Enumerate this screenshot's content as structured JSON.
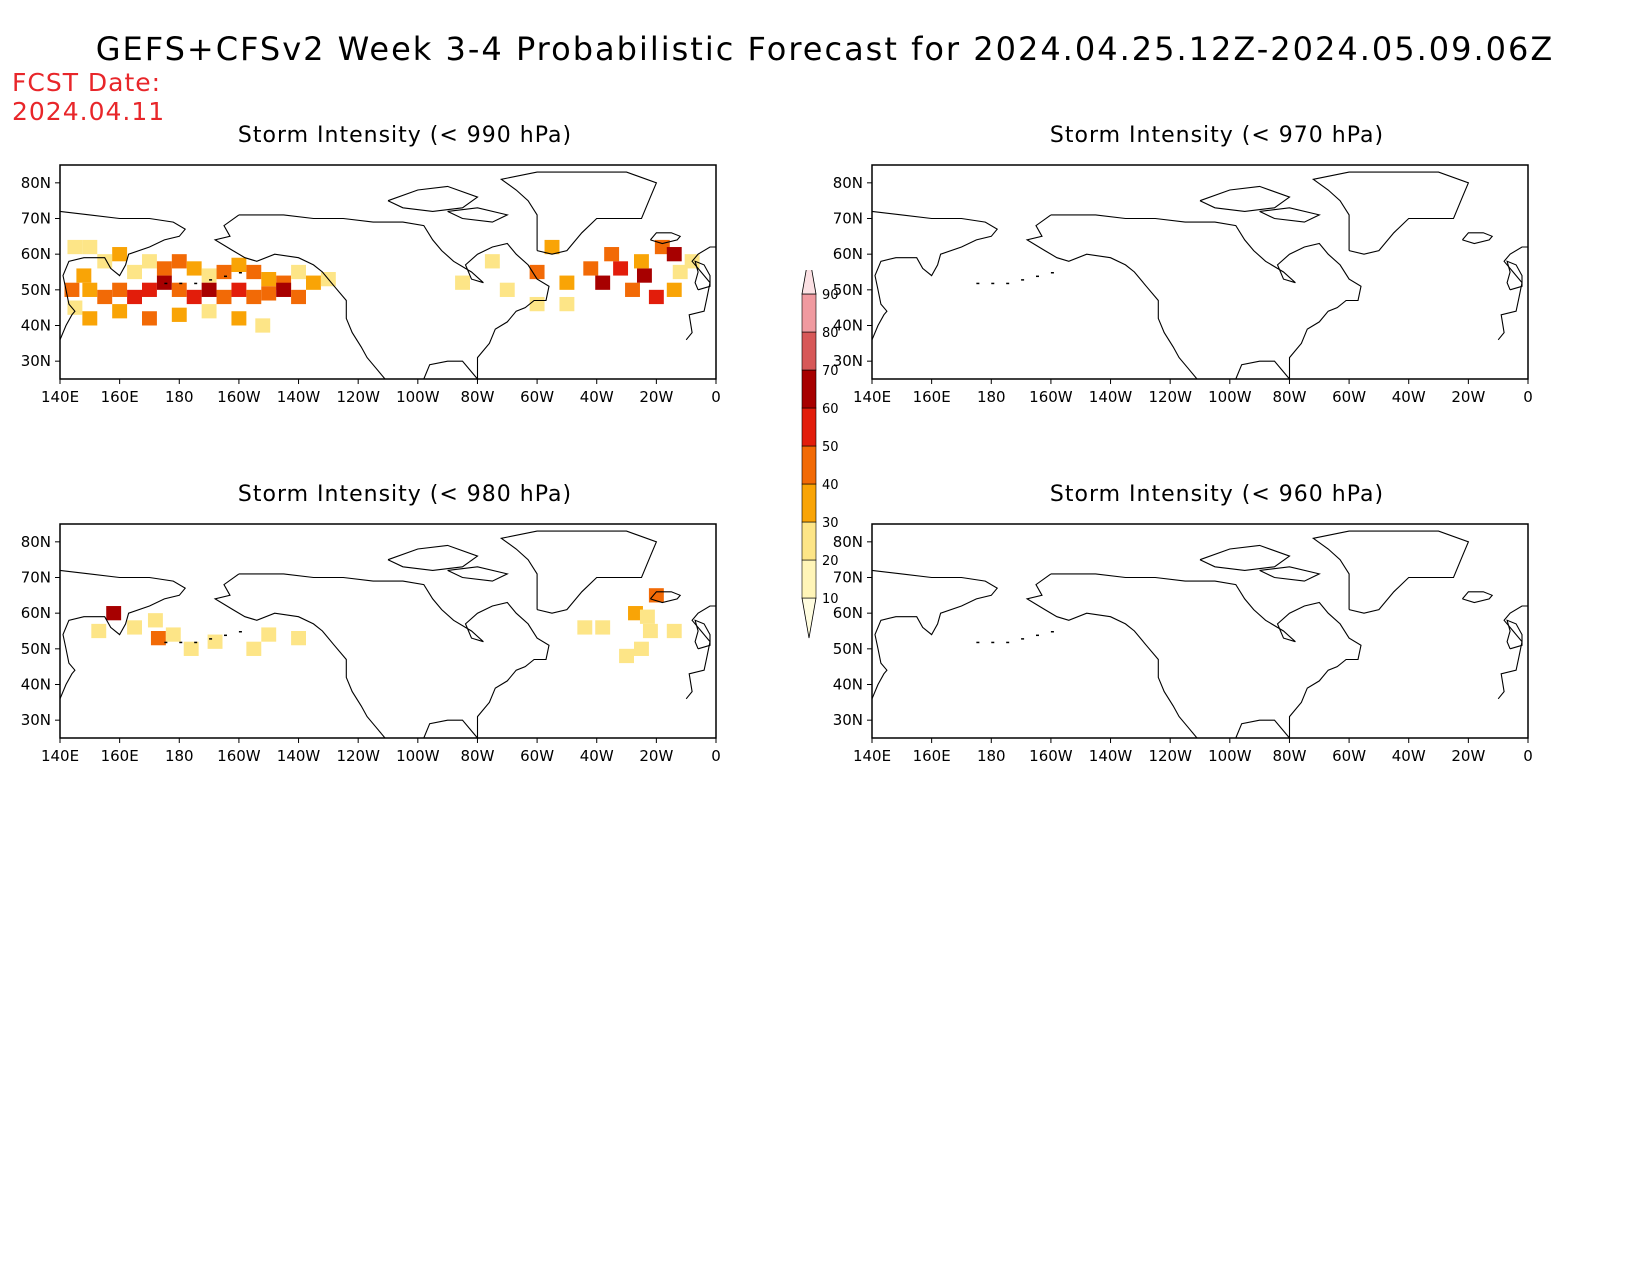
{
  "title": "GEFS+CFSv2 Week 3-4 Probabilistic Forecast for 2024.04.25.12Z-2024.05.09.06Z",
  "fcst_date": {
    "label": "FCST Date:",
    "value": "2024.04.11"
  },
  "colors": {
    "fcst_text": "#e8262a",
    "coastline": "#000000"
  },
  "axes": {
    "x_ticks": [
      "140E",
      "160E",
      "180",
      "160W",
      "140W",
      "120W",
      "100W",
      "80W",
      "60W",
      "40W",
      "20W",
      "0"
    ],
    "y_ticks": [
      "80N",
      "70N",
      "60N",
      "50N",
      "40N",
      "30N"
    ]
  },
  "panels": [
    {
      "id": "p990",
      "title": "Storm Intensity (< 990 hPa)"
    },
    {
      "id": "p970",
      "title": "Storm Intensity (< 970 hPa)"
    },
    {
      "id": "p980",
      "title": "Storm Intensity (< 980 hPa)"
    },
    {
      "id": "p960",
      "title": "Storm Intensity (< 960 hPa)"
    }
  ],
  "colorbar": {
    "labels": [
      "10",
      "20",
      "30",
      "40",
      "50",
      "60",
      "70",
      "80",
      "90"
    ],
    "colors": [
      "#fff5b8",
      "#fde587",
      "#f9a406",
      "#f26a06",
      "#e21d0b",
      "#a70000",
      "#d75858",
      "#f09aa0",
      "#fbe0e3"
    ]
  },
  "chart_data": {
    "type": "heatmap",
    "lon_range": [
      140,
      360
    ],
    "lat_range": [
      25,
      85
    ],
    "panels": [
      {
        "title": "Storm Intensity (< 990 hPa)",
        "cells": [
          [
            145,
            62,
            20
          ],
          [
            150,
            62,
            20
          ],
          [
            155,
            58,
            20
          ],
          [
            160,
            60,
            30
          ],
          [
            165,
            55,
            20
          ],
          [
            170,
            58,
            20
          ],
          [
            175,
            56,
            40
          ],
          [
            180,
            58,
            40
          ],
          [
            185,
            56,
            30
          ],
          [
            190,
            54,
            20
          ],
          [
            195,
            55,
            40
          ],
          [
            200,
            57,
            30
          ],
          [
            205,
            55,
            40
          ],
          [
            210,
            53,
            30
          ],
          [
            215,
            52,
            40
          ],
          [
            220,
            55,
            20
          ],
          [
            225,
            52,
            30
          ],
          [
            230,
            53,
            20
          ],
          [
            150,
            50,
            30
          ],
          [
            155,
            48,
            40
          ],
          [
            160,
            50,
            40
          ],
          [
            165,
            48,
            50
          ],
          [
            170,
            50,
            50
          ],
          [
            175,
            52,
            60
          ],
          [
            180,
            50,
            40
          ],
          [
            185,
            48,
            50
          ],
          [
            190,
            50,
            60
          ],
          [
            195,
            48,
            40
          ],
          [
            200,
            50,
            50
          ],
          [
            205,
            48,
            40
          ],
          [
            210,
            49,
            40
          ],
          [
            215,
            50,
            60
          ],
          [
            220,
            48,
            40
          ],
          [
            145,
            45,
            20
          ],
          [
            150,
            42,
            30
          ],
          [
            160,
            44,
            30
          ],
          [
            170,
            42,
            40
          ],
          [
            180,
            43,
            30
          ],
          [
            190,
            44,
            20
          ],
          [
            200,
            42,
            30
          ],
          [
            208,
            40,
            20
          ],
          [
            144,
            50,
            40
          ],
          [
            148,
            54,
            30
          ],
          [
            300,
            55,
            40
          ],
          [
            305,
            62,
            30
          ],
          [
            310,
            52,
            30
          ],
          [
            318,
            56,
            40
          ],
          [
            322,
            52,
            60
          ],
          [
            325,
            60,
            40
          ],
          [
            328,
            56,
            50
          ],
          [
            332,
            50,
            40
          ],
          [
            336,
            54,
            60
          ],
          [
            340,
            48,
            50
          ],
          [
            335,
            58,
            30
          ],
          [
            342,
            62,
            40
          ],
          [
            346,
            60,
            60
          ],
          [
            346,
            50,
            30
          ],
          [
            348,
            55,
            20
          ],
          [
            352,
            58,
            20
          ],
          [
            310,
            46,
            20
          ],
          [
            300,
            46,
            20
          ],
          [
            290,
            50,
            20
          ],
          [
            285,
            58,
            20
          ],
          [
            275,
            52,
            20
          ]
        ]
      },
      {
        "title": "Storm Intensity (< 970 hPa)",
        "cells": []
      },
      {
        "title": "Storm Intensity (< 980 hPa)",
        "cells": [
          [
            153,
            55,
            20
          ],
          [
            158,
            60,
            60
          ],
          [
            165,
            56,
            20
          ],
          [
            172,
            58,
            20
          ],
          [
            173,
            53,
            40
          ],
          [
            178,
            54,
            20
          ],
          [
            184,
            50,
            20
          ],
          [
            192,
            52,
            20
          ],
          [
            205,
            50,
            20
          ],
          [
            210,
            54,
            20
          ],
          [
            220,
            53,
            20
          ],
          [
            316,
            56,
            20
          ],
          [
            322,
            56,
            20
          ],
          [
            333,
            60,
            30
          ],
          [
            340,
            65,
            40
          ],
          [
            337,
            59,
            20
          ],
          [
            330,
            48,
            20
          ],
          [
            335,
            50,
            20
          ],
          [
            338,
            55,
            20
          ],
          [
            346,
            55,
            20
          ]
        ]
      },
      {
        "title": "Storm Intensity (< 960 hPa)",
        "cells": []
      }
    ]
  }
}
